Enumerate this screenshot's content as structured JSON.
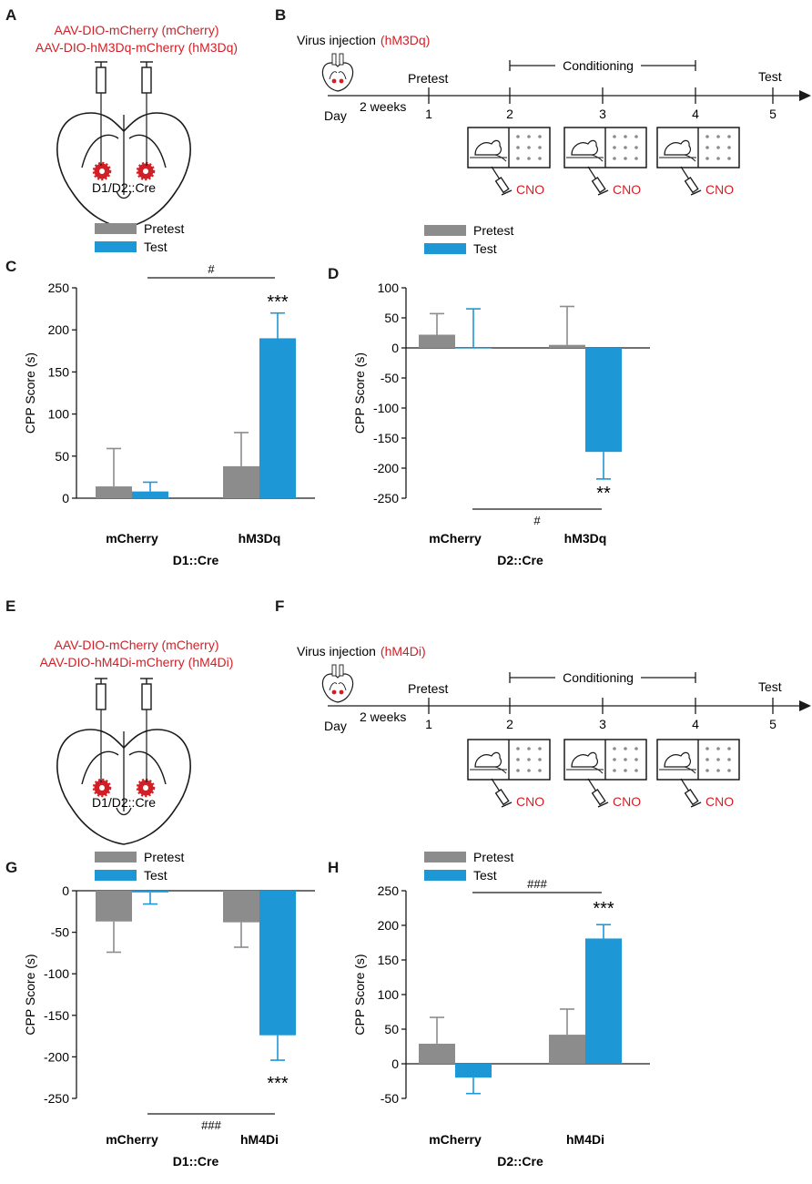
{
  "colors": {
    "pretest": "#8c8c8c",
    "test": "#1e97d6",
    "virus_red": "#d21f26"
  },
  "panel_letters": [
    "A",
    "B",
    "C",
    "D",
    "E",
    "F",
    "G",
    "H"
  ],
  "panelA": {
    "line1": "AAV-DIO-mCherry (mCherry)",
    "line2": "AAV-DIO-hM3Dq-mCherry (hM3Dq)",
    "caption": "D1/D2::Cre"
  },
  "panelB": {
    "virus_label": "Virus injection",
    "virus_tag": "(hM3Dq)",
    "day_label": "Day",
    "weeks_label": "2 weeks",
    "pretest_label": "Pretest",
    "conditioning_label": "Conditioning",
    "test_label": "Test",
    "days": [
      "1",
      "2",
      "3",
      "4",
      "5"
    ],
    "cno_label": "CNO"
  },
  "panelE": {
    "line1": "AAV-DIO-mCherry (mCherry)",
    "line2": "AAV-DIO-hM4Di-mCherry (hM4Di)",
    "caption": "D1/D2::Cre"
  },
  "panelF": {
    "virus_label": "Virus injection",
    "virus_tag": "(hM4Di)",
    "day_label": "Day",
    "weeks_label": "2 weeks",
    "pretest_label": "Pretest",
    "conditioning_label": "Conditioning",
    "test_label": "Test",
    "days": [
      "1",
      "2",
      "3",
      "4",
      "5"
    ],
    "cno_label": "CNO"
  },
  "chart_data": [
    {
      "id": "C",
      "type": "bar",
      "ylabel": "CPP Score (s)",
      "ylim": [
        0,
        250
      ],
      "yticks": [
        0,
        50,
        100,
        150,
        200,
        250
      ],
      "legend": [
        "Pretest",
        "Test"
      ],
      "categories": [
        "mCherry",
        "hM3Dq"
      ],
      "group_label": "D1::Cre",
      "series": [
        {
          "name": "Pretest",
          "values": [
            14,
            38
          ],
          "errors": [
            45,
            40
          ]
        },
        {
          "name": "Test",
          "values": [
            8,
            190
          ],
          "errors": [
            11,
            30
          ]
        }
      ],
      "star": "***",
      "star_group": 1,
      "hash": "#"
    },
    {
      "id": "D",
      "type": "bar",
      "ylabel": "CPP Score (s)",
      "ylim": [
        -250,
        100
      ],
      "yticks": [
        100,
        50,
        0,
        -50,
        -100,
        -150,
        -200,
        -250
      ],
      "legend": [
        "Pretest",
        "Test"
      ],
      "categories": [
        "mCherry",
        "hM3Dq"
      ],
      "group_label": "D2::Cre",
      "series": [
        {
          "name": "Pretest",
          "values": [
            22,
            5
          ],
          "errors": [
            35,
            64
          ]
        },
        {
          "name": "Test",
          "values": [
            0,
            -173
          ],
          "errors": [
            65,
            45
          ]
        }
      ],
      "star": "**",
      "star_group": 1,
      "hash": "#"
    },
    {
      "id": "G",
      "type": "bar",
      "ylabel": "CPP Score (s)",
      "ylim": [
        -250,
        0
      ],
      "yticks": [
        0,
        -50,
        -100,
        -150,
        -200,
        -250
      ],
      "legend": [
        "Pretest",
        "Test"
      ],
      "categories": [
        "mCherry",
        "hM4Di"
      ],
      "group_label": "D1::Cre",
      "series": [
        {
          "name": "Pretest",
          "values": [
            -37,
            -38
          ],
          "errors": [
            37,
            30
          ]
        },
        {
          "name": "Test",
          "values": [
            -2,
            -174
          ],
          "errors": [
            14,
            30
          ]
        }
      ],
      "star": "***",
      "star_group": 1,
      "hash": "###"
    },
    {
      "id": "H",
      "type": "bar",
      "ylabel": "CPP Score (s)",
      "ylim": [
        -50,
        250
      ],
      "yticks": [
        250,
        200,
        150,
        100,
        50,
        0,
        -50
      ],
      "legend": [
        "Pretest",
        "Test"
      ],
      "categories": [
        "mCherry",
        "hM4Di"
      ],
      "group_label": "D2::Cre",
      "series": [
        {
          "name": "Pretest",
          "values": [
            29,
            42
          ],
          "errors": [
            38,
            37
          ]
        },
        {
          "name": "Test",
          "values": [
            -20,
            181
          ],
          "errors": [
            23,
            20
          ]
        }
      ],
      "star": "***",
      "star_group": 1,
      "hash": "###"
    }
  ]
}
